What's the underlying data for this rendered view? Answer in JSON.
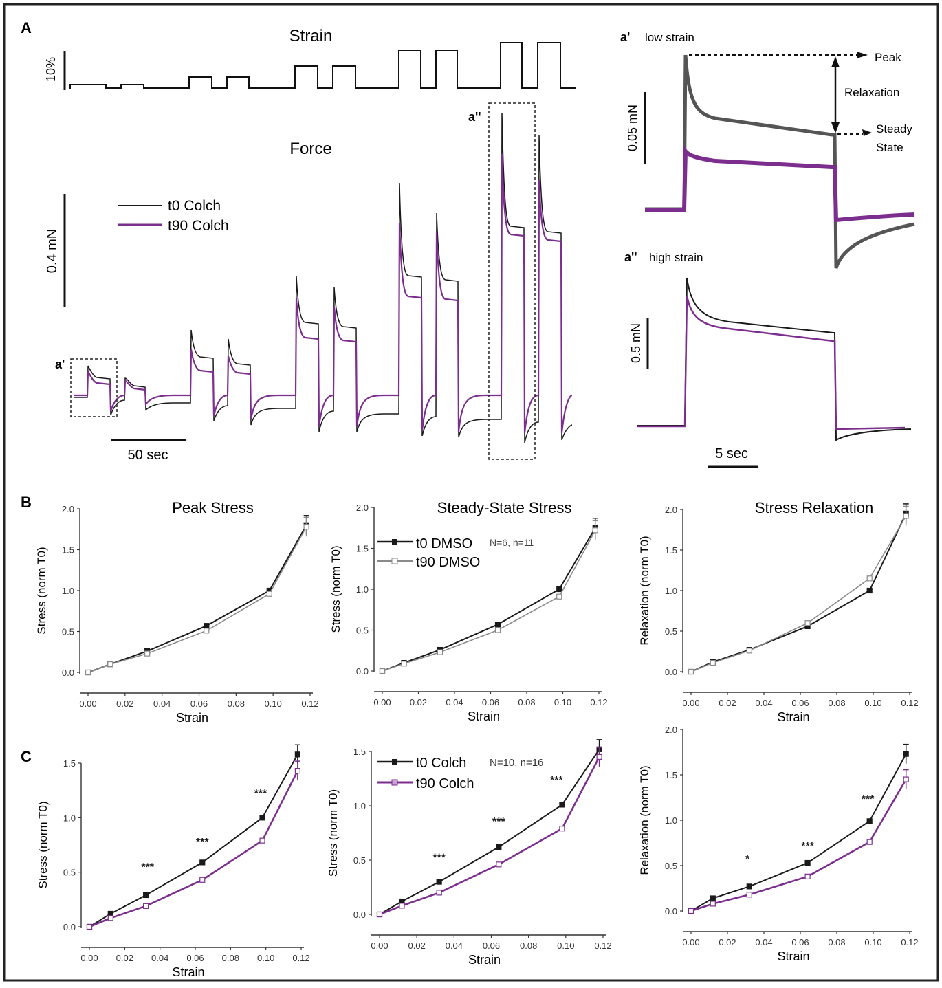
{
  "panel_labels": {
    "A": "A",
    "B": "B",
    "C": "C",
    "a1": "a'",
    "a2": "a''"
  },
  "panel_a": {
    "strain_title": "Strain",
    "strain_scale": "10%",
    "force_title": "Force",
    "force_scale": "0.4 mN",
    "time_scale": "50 sec",
    "legend": [
      "t0 Colch",
      "t90 Colch"
    ],
    "inset_low": {
      "label": "a'",
      "title": "low strain",
      "scale": "0.05 mN",
      "peak": "Peak",
      "relaxation": "Relaxation",
      "steady": "Steady",
      "state": "State"
    },
    "inset_high": {
      "label": "a''",
      "title": "high strain",
      "scale": "0.5 mN",
      "time_scale": "5 sec"
    }
  },
  "colors": {
    "t0": "#1a1a1a",
    "t90_colch": "#7b2e8e",
    "t90_dmso": "#8a8a8a"
  },
  "legend_b": {
    "t0": "t0 DMSO",
    "t90": "t90 DMSO",
    "n": "N=6, n=11"
  },
  "legend_c": {
    "t0": "t0 Colch",
    "t90": "t90 Colch",
    "n": "N=10, n=16"
  },
  "chart_data": [
    {
      "id": "B1",
      "type": "line",
      "title": "Peak Stress",
      "xlabel": "Strain",
      "ylabel": "Stress (norm T0)",
      "x_ticks": [
        "0.00",
        "0.02",
        "0.04",
        "0.06",
        "0.08",
        "0.10",
        "0.12"
      ],
      "y_ticks": [
        "0.0",
        "0.5",
        "1.0",
        "1.5",
        "2.0"
      ],
      "xlim": [
        0,
        0.12
      ],
      "ylim": [
        0,
        2.0
      ],
      "series": [
        {
          "name": "t0 DMSO",
          "x": [
            0.0,
            0.012,
            0.032,
            0.064,
            0.098,
            0.118
          ],
          "y": [
            0.0,
            0.1,
            0.26,
            0.57,
            1.0,
            1.8
          ]
        },
        {
          "name": "t90 DMSO",
          "x": [
            0.0,
            0.012,
            0.032,
            0.064,
            0.098,
            0.118
          ],
          "y": [
            0.0,
            0.1,
            0.23,
            0.51,
            0.96,
            1.78
          ]
        }
      ],
      "annotations": []
    },
    {
      "id": "B2",
      "type": "line",
      "title": "Steady-State Stress",
      "xlabel": "Strain",
      "ylabel": "Stress (norm T0)",
      "x_ticks": [
        "0.00",
        "0.02",
        "0.04",
        "0.06",
        "0.08",
        "0.10",
        "0.12"
      ],
      "y_ticks": [
        "0.0",
        "0.5",
        "1.0",
        "1.5",
        "2.0"
      ],
      "xlim": [
        0,
        0.12
      ],
      "ylim": [
        0,
        2.0
      ],
      "series": [
        {
          "name": "t0 DMSO",
          "x": [
            0.0,
            0.012,
            0.032,
            0.064,
            0.098,
            0.118
          ],
          "y": [
            0.0,
            0.1,
            0.26,
            0.57,
            1.0,
            1.75
          ]
        },
        {
          "name": "t90 DMSO",
          "x": [
            0.0,
            0.012,
            0.032,
            0.064,
            0.098,
            0.118
          ],
          "y": [
            0.0,
            0.09,
            0.23,
            0.5,
            0.91,
            1.72
          ]
        }
      ],
      "annotations": []
    },
    {
      "id": "B3",
      "type": "line",
      "title": "Stress Relaxation",
      "xlabel": "Strain",
      "ylabel": "Relaxation (norm T0)",
      "x_ticks": [
        "0.00",
        "0.02",
        "0.04",
        "0.06",
        "0.08",
        "0.10",
        "0.12"
      ],
      "y_ticks": [
        "0.0",
        "0.5",
        "1.0",
        "1.5",
        "2.0"
      ],
      "xlim": [
        0,
        0.12
      ],
      "ylim": [
        0,
        2.0
      ],
      "series": [
        {
          "name": "t0 DMSO",
          "x": [
            0.0,
            0.012,
            0.032,
            0.064,
            0.098,
            0.118
          ],
          "y": [
            0.0,
            0.12,
            0.27,
            0.56,
            1.0,
            1.95
          ]
        },
        {
          "name": "t90 DMSO",
          "x": [
            0.0,
            0.012,
            0.032,
            0.064,
            0.098,
            0.118
          ],
          "y": [
            0.0,
            0.11,
            0.26,
            0.6,
            1.15,
            1.92
          ]
        }
      ],
      "annotations": []
    },
    {
      "id": "C1",
      "type": "line",
      "title": "",
      "xlabel": "Strain",
      "ylabel": "Stress (norm T0)",
      "x_ticks": [
        "0.00",
        "0.02",
        "0.04",
        "0.06",
        "0.08",
        "0.10",
        "0.12"
      ],
      "y_ticks": [
        "0.0",
        "0.5",
        "1.0",
        "1.5"
      ],
      "xlim": [
        0,
        0.12
      ],
      "ylim": [
        0,
        1.5
      ],
      "series": [
        {
          "name": "t0 Colch",
          "x": [
            0.0,
            0.012,
            0.032,
            0.064,
            0.098,
            0.118
          ],
          "y": [
            0.0,
            0.12,
            0.29,
            0.59,
            1.0,
            1.58
          ]
        },
        {
          "name": "t90 Colch",
          "x": [
            0.0,
            0.012,
            0.032,
            0.064,
            0.098,
            0.118
          ],
          "y": [
            0.0,
            0.08,
            0.19,
            0.43,
            0.79,
            1.43
          ]
        }
      ],
      "annotations": [
        {
          "x": 0.033,
          "y": 0.55,
          "text": "***"
        },
        {
          "x": 0.064,
          "y": 0.78,
          "text": "***"
        },
        {
          "x": 0.097,
          "y": 1.23,
          "text": "***"
        }
      ]
    },
    {
      "id": "C2",
      "type": "line",
      "title": "",
      "xlabel": "Strain",
      "ylabel": "Stress (norm T0)",
      "x_ticks": [
        "0.00",
        "0.02",
        "0.04",
        "0.06",
        "0.08",
        "0.10",
        "0.12"
      ],
      "y_ticks": [
        "0.0",
        "0.5",
        "1.0",
        "1.5"
      ],
      "xlim": [
        0,
        0.12
      ],
      "ylim": [
        0,
        1.5
      ],
      "series": [
        {
          "name": "t0 Colch",
          "x": [
            0.0,
            0.012,
            0.032,
            0.064,
            0.098,
            0.118
          ],
          "y": [
            0.0,
            0.12,
            0.3,
            0.62,
            1.01,
            1.52
          ]
        },
        {
          "name": "t90 Colch",
          "x": [
            0.0,
            0.012,
            0.032,
            0.064,
            0.098,
            0.118
          ],
          "y": [
            0.0,
            0.08,
            0.2,
            0.46,
            0.79,
            1.45
          ]
        }
      ],
      "annotations": [
        {
          "x": 0.032,
          "y": 0.53,
          "text": "***"
        },
        {
          "x": 0.064,
          "y": 0.86,
          "text": "***"
        },
        {
          "x": 0.095,
          "y": 1.24,
          "text": "***"
        }
      ]
    },
    {
      "id": "C3",
      "type": "line",
      "title": "",
      "xlabel": "Strain",
      "ylabel": "Relaxation (norm T0)",
      "x_ticks": [
        "0.00",
        "0.02",
        "0.04",
        "0.06",
        "0.08",
        "0.10",
        "0.12"
      ],
      "y_ticks": [
        "0.0",
        "0.5",
        "1.0",
        "1.5",
        "2.0"
      ],
      "xlim": [
        0,
        0.12
      ],
      "ylim": [
        0,
        2.0
      ],
      "series": [
        {
          "name": "t0 Colch",
          "x": [
            0.0,
            0.012,
            0.032,
            0.064,
            0.098,
            0.118
          ],
          "y": [
            0.0,
            0.14,
            0.27,
            0.53,
            0.99,
            1.73
          ]
        },
        {
          "name": "t90 Colch",
          "x": [
            0.0,
            0.012,
            0.032,
            0.064,
            0.098,
            0.118
          ],
          "y": [
            0.0,
            0.08,
            0.18,
            0.38,
            0.76,
            1.45
          ]
        }
      ],
      "annotations": [
        {
          "x": 0.031,
          "y": 0.58,
          "text": "*"
        },
        {
          "x": 0.064,
          "y": 0.72,
          "text": "***"
        },
        {
          "x": 0.097,
          "y": 1.24,
          "text": "***"
        }
      ]
    }
  ]
}
